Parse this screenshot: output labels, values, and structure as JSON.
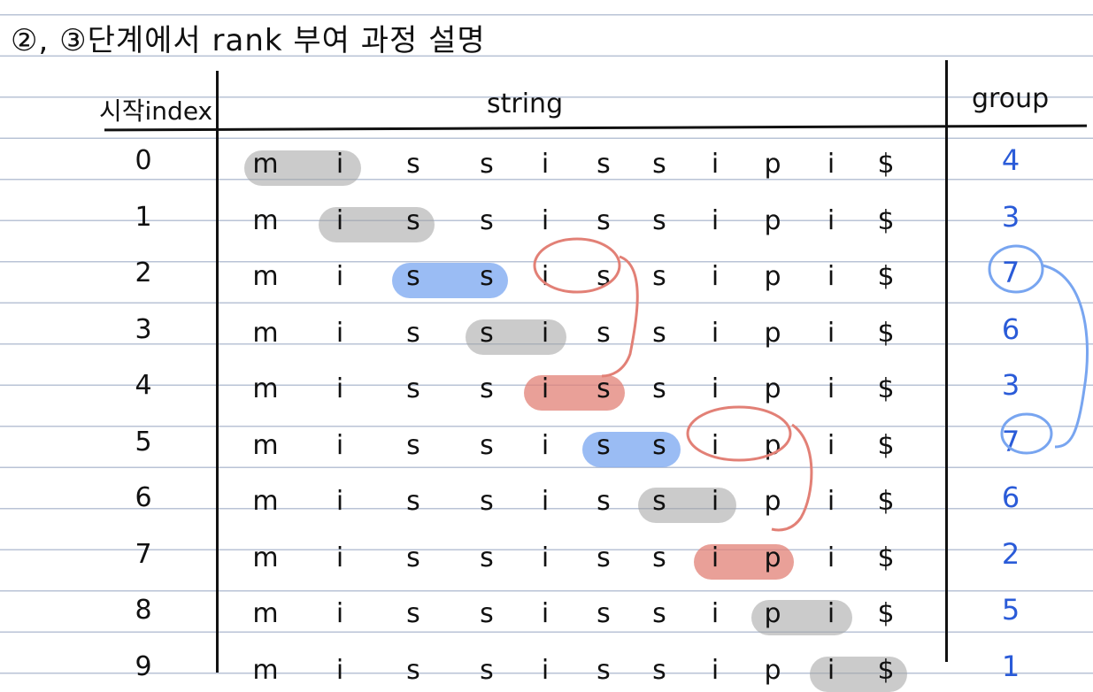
{
  "title": "②, ③단계에서 rank 부여 과정 설명",
  "headers": {
    "index": "시작index",
    "string": "string",
    "group": "group"
  },
  "rows": [
    {
      "index": "0",
      "chars": [
        "m",
        "i",
        "s",
        "s",
        "i",
        "s",
        "s",
        "i",
        "p",
        "i",
        "$"
      ],
      "group": "4"
    },
    {
      "index": "1",
      "chars": [
        "m",
        "i",
        "s",
        "s",
        "i",
        "s",
        "s",
        "i",
        "p",
        "i",
        "$"
      ],
      "group": "3"
    },
    {
      "index": "2",
      "chars": [
        "m",
        "i",
        "s",
        "s",
        "i",
        "s",
        "s",
        "i",
        "p",
        "i",
        "$"
      ],
      "group": "7"
    },
    {
      "index": "3",
      "chars": [
        "m",
        "i",
        "s",
        "s",
        "i",
        "s",
        "s",
        "i",
        "p",
        "i",
        "$"
      ],
      "group": "6"
    },
    {
      "index": "4",
      "chars": [
        "m",
        "i",
        "s",
        "s",
        "i",
        "s",
        "s",
        "i",
        "p",
        "i",
        "$"
      ],
      "group": "3"
    },
    {
      "index": "5",
      "chars": [
        "m",
        "i",
        "s",
        "s",
        "i",
        "s",
        "s",
        "i",
        "p",
        "i",
        "$"
      ],
      "group": "7"
    },
    {
      "index": "6",
      "chars": [
        "m",
        "i",
        "s",
        "s",
        "i",
        "s",
        "s",
        "i",
        "p",
        "i",
        "$"
      ],
      "group": "6"
    },
    {
      "index": "7",
      "chars": [
        "m",
        "i",
        "s",
        "s",
        "i",
        "s",
        "s",
        "i",
        "p",
        "i",
        "$"
      ],
      "group": "2"
    },
    {
      "index": "8",
      "chars": [
        "m",
        "i",
        "s",
        "s",
        "i",
        "s",
        "s",
        "i",
        "p",
        "i",
        "$"
      ],
      "group": "5"
    },
    {
      "index": "9",
      "chars": [
        "m",
        "i",
        "s",
        "s",
        "i",
        "s",
        "s",
        "i",
        "p",
        "i",
        "$"
      ],
      "group": "1"
    }
  ],
  "highlights": [
    {
      "row": 0,
      "from": 0,
      "to": 1,
      "color": "gray"
    },
    {
      "row": 1,
      "from": 1,
      "to": 2,
      "color": "gray"
    },
    {
      "row": 2,
      "from": 2,
      "to": 3,
      "color": "blue"
    },
    {
      "row": 3,
      "from": 3,
      "to": 4,
      "color": "gray"
    },
    {
      "row": 4,
      "from": 4,
      "to": 5,
      "color": "red"
    },
    {
      "row": 5,
      "from": 5,
      "to": 6,
      "color": "blue"
    },
    {
      "row": 6,
      "from": 6,
      "to": 7,
      "color": "gray"
    },
    {
      "row": 7,
      "from": 7,
      "to": 8,
      "color": "red"
    },
    {
      "row": 8,
      "from": 8,
      "to": 9,
      "color": "gray"
    },
    {
      "row": 9,
      "from": 9,
      "to": 10,
      "color": "gray"
    }
  ],
  "colors": {
    "gray": "#a0a0a0",
    "blue": "#78a5f0",
    "red": "#e28076",
    "group_text": "#2a5bd8",
    "ink": "#111111"
  }
}
